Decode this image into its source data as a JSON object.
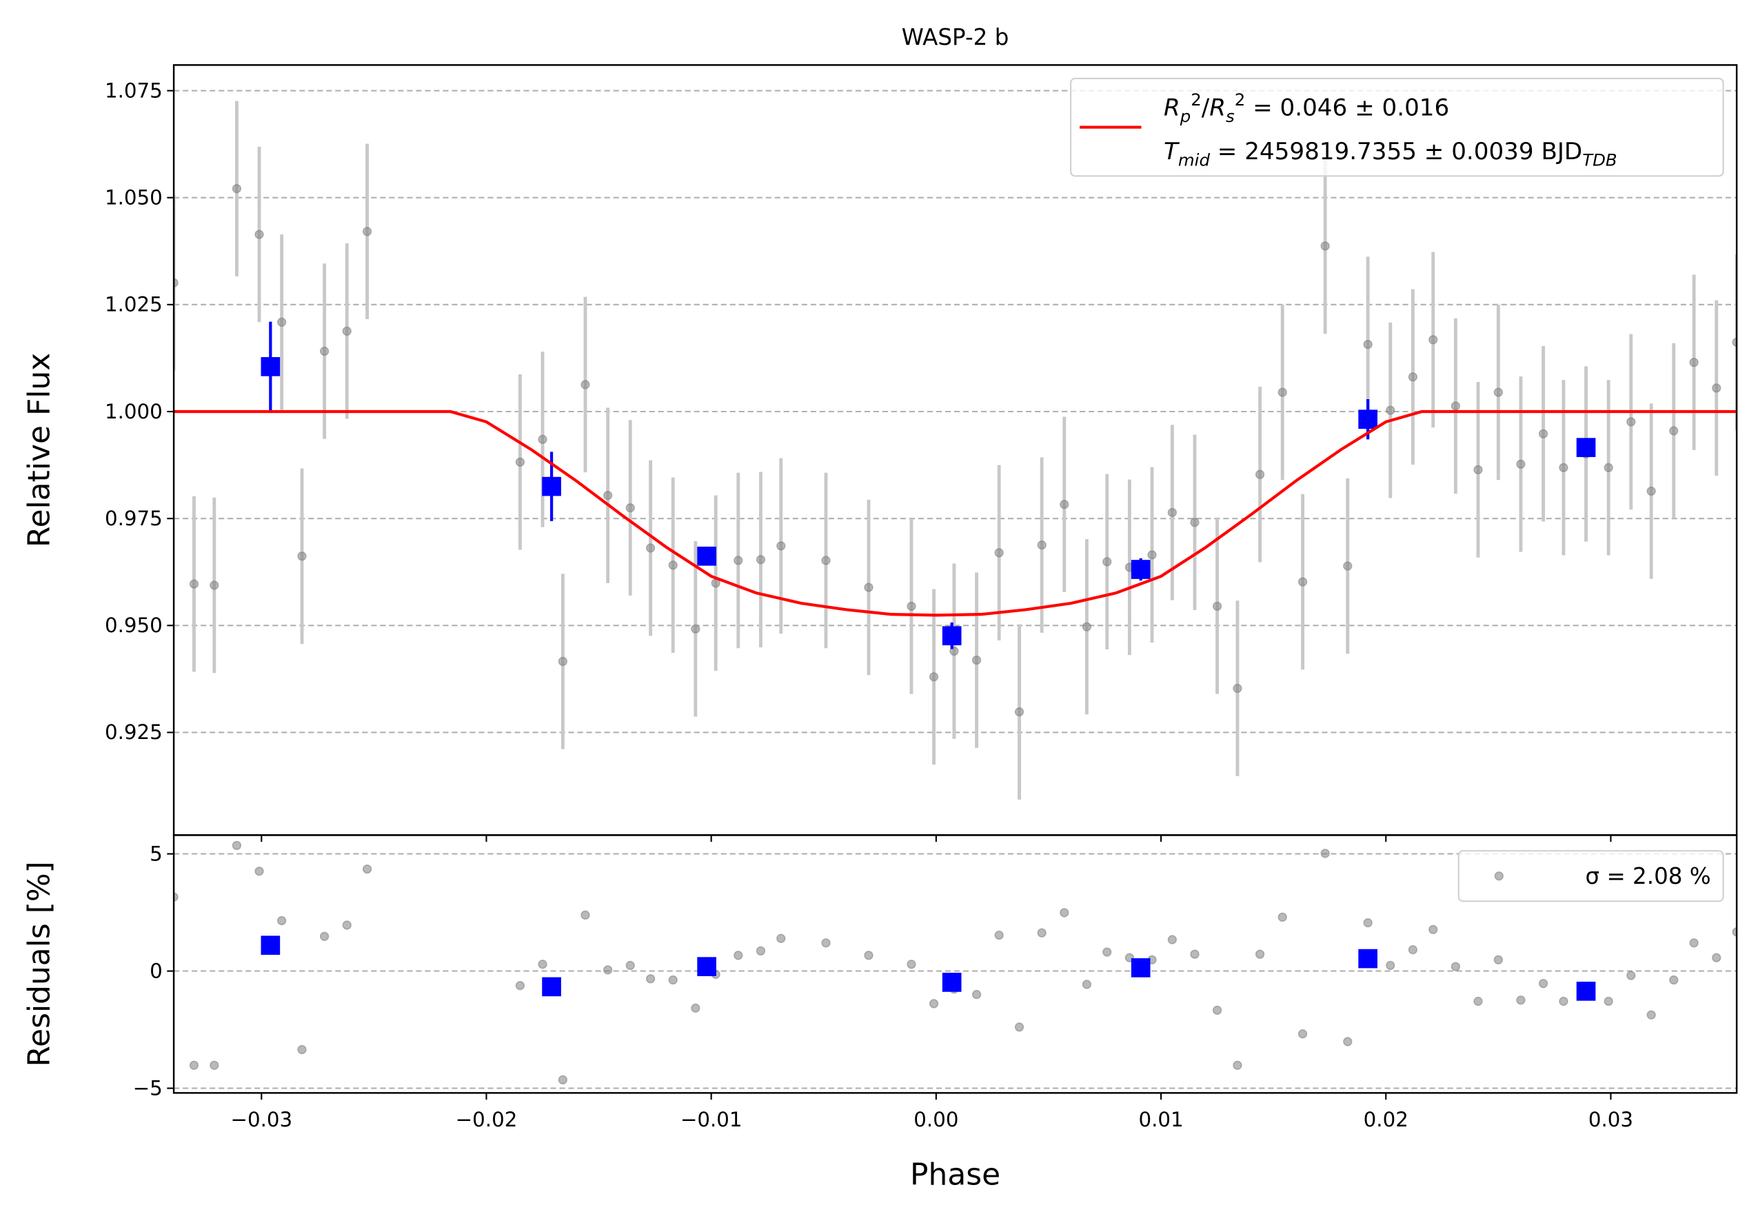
{
  "chart_data": [
    {
      "type": "scatter",
      "title": "WASP-2 b",
      "ylabel": "Relative Flux",
      "xlim": [
        -0.0339,
        0.0356
      ],
      "ylim": [
        0.901,
        1.081
      ],
      "xticks": [
        -0.03,
        -0.02,
        -0.01,
        0,
        0.01,
        0.02,
        0.03
      ],
      "yticks": [
        0.925,
        {
          "value": 0.95,
          "label": "0.950"
        },
        0.975,
        {
          "value": 1,
          "label": "1.000"
        },
        1.025,
        {
          "value": 1.05,
          "label": "1.050"
        },
        1.075
      ],
      "grid": true,
      "legend": "upper right",
      "series": [
        {
          "color": "#808080",
          "marker": "circle",
          "error": 0.0205,
          "x": [
            -0.0339,
            -0.033,
            -0.0321,
            -0.0311,
            -0.0301,
            -0.0291,
            -0.0282,
            -0.0272,
            -0.0262,
            -0.0253,
            -0.0185,
            -0.0175,
            -0.0166,
            -0.0156,
            -0.0146,
            -0.0136,
            -0.0127,
            -0.0117,
            -0.0107,
            -0.0098,
            -0.0088,
            -0.0078,
            -0.0069,
            -0.0049,
            -0.003,
            -0.0011,
            -0.0001,
            0.0008,
            0.0018,
            0.0028,
            0.0037,
            0.0047,
            0.0057,
            0.0067,
            0.0076,
            0.0086,
            0.0096,
            0.0105,
            0.0115,
            0.0125,
            0.0134,
            0.0144,
            0.0154,
            0.0163,
            0.0173,
            0.0183,
            0.0192,
            0.0202,
            0.0212,
            0.0221,
            0.0231,
            0.0241,
            0.025,
            0.026,
            0.027,
            0.0279,
            0.0289,
            0.0299,
            0.0309,
            0.0318,
            0.0328,
            0.0337,
            0.0347,
            0.0356
          ],
          "values": [
            1.0301,
            0.9597,
            0.9594,
            1.0521,
            1.0414,
            1.0209,
            0.9662,
            1.0141,
            1.0188,
            1.0421,
            0.9882,
            0.9935,
            0.9416,
            1.0063,
            0.9804,
            0.9775,
            0.9681,
            0.9641,
            0.9492,
            0.9599,
            0.9652,
            0.9654,
            0.9686,
            0.9652,
            0.9589,
            0.9545,
            0.938,
            0.944,
            0.9419,
            0.967,
            0.9298,
            0.9688,
            0.9783,
            0.9497,
            0.9649,
            0.9636,
            0.9665,
            0.9764,
            0.9741,
            0.9545,
            0.9353,
            0.9853,
            1.0045,
            0.9602,
            1.0387,
            0.9639,
            1.0157,
            1.0003,
            1.0081,
            1.0168,
            1.0013,
            0.9864,
            1.0045,
            0.9877,
            0.9948,
            0.9869,
            0.9901,
            0.9869,
            0.9976,
            0.9814,
            0.9955,
            1.0115,
            1.0055,
            1.0162
          ]
        },
        {
          "color": "#0000ff",
          "marker": "square",
          "x": [
            -0.0296,
            -0.0171,
            -0.0102,
            0.0007,
            0.0091,
            0.0192,
            0.0289
          ],
          "values": [
            1.0105,
            0.9825,
            0.9662,
            0.9476,
            0.9631,
            0.9982,
            0.9916
          ],
          "errors": [
            0.0105,
            0.0081,
            0.001,
            0.0031,
            0.0026,
            0.0047,
            0.0005
          ]
        },
        {
          "color": "#ff0000",
          "line": true,
          "name": [
            [
              {
                "text": "R",
                "style": "italic"
              },
              {
                "text": "p",
                "style": "sub"
              },
              {
                "text": "2",
                "style": "sup"
              },
              {
                "text": "/",
                "style": "normal"
              },
              {
                "text": "R",
                "style": "italic"
              },
              {
                "text": "s",
                "style": "sub"
              },
              {
                "text": "2",
                "style": "sup"
              },
              {
                "text": " = 0.046 ± 0.016",
                "style": "normal"
              }
            ],
            [
              {
                "text": "T",
                "style": "italic"
              },
              {
                "text": "mid",
                "style": "sub"
              },
              {
                "text": " = 2459819.7355 ± 0.0039 BJD",
                "style": "normal"
              },
              {
                "text": "TDB",
                "style": "sub"
              }
            ]
          ],
          "x": [
            -0.0339,
            -0.0216,
            -0.02,
            -0.018,
            -0.016,
            -0.014,
            -0.012,
            -0.01,
            -0.008,
            -0.006,
            -0.004,
            -0.002,
            0,
            0.002,
            0.004,
            0.006,
            0.008,
            0.01,
            0.012,
            0.014,
            0.016,
            0.018,
            0.02,
            0.0216,
            0.0356
          ],
          "values": [
            1,
            1,
            0.9976,
            0.9911,
            0.9838,
            0.9759,
            0.9683,
            0.9615,
            0.9576,
            0.9552,
            0.9537,
            0.9526,
            0.9524,
            0.9526,
            0.9537,
            0.9552,
            0.9576,
            0.9615,
            0.9683,
            0.9759,
            0.9838,
            0.9911,
            0.9976,
            1,
            1
          ]
        }
      ]
    },
    {
      "type": "scatter",
      "ylabel": "Residuals [%]",
      "xlabel": "Phase",
      "xlim": [
        -0.0339,
        0.0356
      ],
      "ylim": [
        -5.2,
        5.8
      ],
      "xticks": [
        {
          "value": -0.03,
          "label": "−0.03"
        },
        {
          "value": -0.02,
          "label": "−0.02"
        },
        {
          "value": -0.01,
          "label": "−0.01"
        },
        {
          "value": 0,
          "label": "0.00"
        },
        0.01,
        0.02,
        0.03
      ],
      "yticks": [
        {
          "value": -5,
          "label": "−5"
        },
        0,
        5
      ],
      "grid": true,
      "legend": "upper right",
      "series": [
        {
          "color": "#808080",
          "marker": "circle",
          "name": "σ = 2.08 %",
          "x": [
            -0.0339,
            -0.033,
            -0.0321,
            -0.0311,
            -0.0301,
            -0.0291,
            -0.0282,
            -0.0272,
            -0.0262,
            -0.0253,
            -0.0185,
            -0.0175,
            -0.0166,
            -0.0156,
            -0.0146,
            -0.0136,
            -0.0127,
            -0.0117,
            -0.0107,
            -0.0098,
            -0.0088,
            -0.0078,
            -0.0069,
            -0.0049,
            -0.003,
            -0.0011,
            -0.0001,
            0.0008,
            0.0018,
            0.0028,
            0.0037,
            0.0047,
            0.0057,
            0.0067,
            0.0076,
            0.0086,
            0.0096,
            0.0105,
            0.0115,
            0.0125,
            0.0134,
            0.0144,
            0.0154,
            0.0163,
            0.0173,
            0.0183,
            0.0192,
            0.0202,
            0.0212,
            0.0221,
            0.0231,
            0.0241,
            0.025,
            0.026,
            0.027,
            0.0279,
            0.0289,
            0.0299,
            0.0309,
            0.0318,
            0.0328,
            0.0337,
            0.0347,
            0.0356
          ],
          "values": [
            3.16,
            -4.02,
            -4.02,
            5.36,
            4.26,
            2.15,
            -3.35,
            1.48,
            1.96,
            4.35,
            -0.62,
            0.29,
            -4.64,
            2.39,
            0.05,
            0.24,
            -0.33,
            -0.38,
            -1.58,
            -0.14,
            0.67,
            0.86,
            1.39,
            1.2,
            0.67,
            0.29,
            -1.39,
            -0.77,
            -1.0,
            1.53,
            -2.39,
            1.63,
            2.49,
            -0.57,
            0.81,
            0.57,
            0.48,
            1.34,
            0.72,
            -1.67,
            -4.02,
            0.72,
            2.3,
            -2.68,
            5.02,
            -3.01,
            2.06,
            0.24,
            0.91,
            1.77,
            0.19,
            -1.29,
            0.48,
            -1.24,
            -0.53,
            -1.29,
            -0.72,
            -1.29,
            -0.19,
            -1.87,
            -0.38,
            1.2,
            0.57,
            1.67
          ]
        },
        {
          "color": "#0000ff",
          "marker": "square",
          "x": [
            -0.0296,
            -0.0171,
            -0.0102,
            0.0007,
            0.0091,
            0.0192,
            0.0289
          ],
          "values": [
            1.1,
            -0.67,
            0.19,
            -0.48,
            0.14,
            0.53,
            -0.86
          ]
        }
      ]
    }
  ]
}
